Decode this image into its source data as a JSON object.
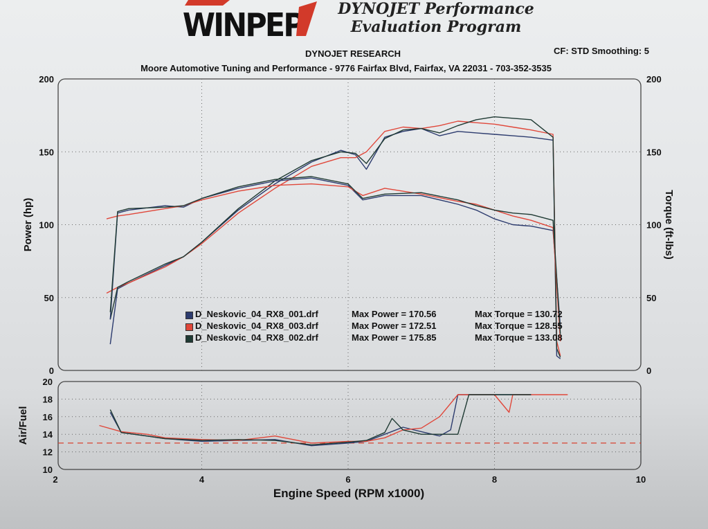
{
  "header": {
    "logo_text": "WINPEP",
    "subtitle_line1": "DYNOJET Performance",
    "subtitle_line2": "Evaluation Program",
    "research": "DYNOJET RESEARCH",
    "cf_smoothing": "CF: STD  Smoothing: 5",
    "shop": "Moore Automotive Tuning and Performance - 9776 Fairfax Blvd, Fairfax, VA 22031 - 703-352-3535"
  },
  "colors": {
    "run_001": "#2c3b6e",
    "run_003": "#e0473a",
    "run_002": "#1f3a33",
    "reference_line": "#d9432f"
  },
  "legend": [
    {
      "name": "D_Neskovic_04_RX8_001.drf",
      "power_label": "Max Power = 170.56",
      "torque_label": "Max Torque = 130.72",
      "color": "#2c3b6e"
    },
    {
      "name": "D_Neskovic_04_RX8_003.drf",
      "power_label": "Max Power = 172.51",
      "torque_label": "Max Torque = 128.55",
      "color": "#e0473a"
    },
    {
      "name": "D_Neskovic_04_RX8_002.drf",
      "power_label": "Max Power = 175.85",
      "torque_label": "Max Torque = 133.08",
      "color": "#1f3a33"
    }
  ],
  "chart_data": [
    {
      "type": "line",
      "xlabel": "Engine Speed (RPM x1000)",
      "ylabel": "Power (hp)",
      "y2label": "Torque (ft-lbs)",
      "xlim": [
        2,
        10
      ],
      "ylim": [
        0,
        200
      ],
      "y2lim": [
        0,
        200
      ],
      "xticks": [
        2,
        4,
        6,
        8,
        10
      ],
      "yticks": [
        0,
        50,
        100,
        150,
        200
      ],
      "y2ticks": [
        0,
        50,
        100,
        150,
        200
      ],
      "grid": true,
      "series": [
        {
          "name": "D_Neskovic_04_RX8_001.drf",
          "quantity": "power",
          "color": "#2c3b6e",
          "x": [
            2.75,
            2.85,
            3.0,
            3.5,
            3.75,
            4.0,
            4.5,
            5.0,
            5.5,
            5.9,
            6.1,
            6.25,
            6.5,
            6.75,
            7.0,
            7.25,
            7.5,
            7.75,
            8.0,
            8.25,
            8.5,
            8.8,
            8.85,
            8.9
          ],
          "y": [
            18,
            56,
            60,
            72,
            78,
            88,
            110,
            128,
            143,
            151,
            148,
            138,
            160,
            164,
            166,
            161,
            164,
            163,
            162,
            161,
            160,
            158,
            10,
            8
          ]
        },
        {
          "name": "D_Neskovic_04_RX8_003.drf",
          "quantity": "power",
          "color": "#e0473a",
          "x": [
            2.7,
            2.85,
            3.0,
            3.5,
            3.75,
            4.0,
            4.5,
            5.0,
            5.5,
            5.9,
            6.1,
            6.25,
            6.5,
            6.75,
            7.0,
            7.25,
            7.5,
            7.75,
            8.0,
            8.25,
            8.5,
            8.8,
            8.85,
            8.9
          ],
          "y": [
            53,
            57,
            60,
            71,
            78,
            87,
            108,
            125,
            140,
            146,
            146,
            150,
            164,
            167,
            166,
            168,
            171,
            170,
            169,
            167,
            165,
            162,
            20,
            10
          ]
        },
        {
          "name": "D_Neskovic_04_RX8_002.drf",
          "quantity": "power",
          "color": "#1f3a33",
          "x": [
            2.75,
            2.85,
            3.0,
            3.5,
            3.75,
            4.0,
            4.5,
            5.0,
            5.5,
            5.9,
            6.1,
            6.25,
            6.5,
            6.75,
            7.0,
            7.25,
            7.5,
            7.75,
            8.0,
            8.25,
            8.5,
            8.8,
            8.85,
            8.9
          ],
          "y": [
            35,
            57,
            61,
            73,
            78,
            88,
            111,
            130,
            144,
            150,
            149,
            142,
            159,
            165,
            166,
            163,
            168,
            172,
            174,
            173,
            172,
            160,
            15,
            9
          ]
        },
        {
          "name": "D_Neskovic_04_RX8_001.drf",
          "quantity": "torque",
          "color": "#2c3b6e",
          "x": [
            2.75,
            2.85,
            3.0,
            3.5,
            3.75,
            4.0,
            4.5,
            5.0,
            5.5,
            6.0,
            6.2,
            6.5,
            7.0,
            7.5,
            7.75,
            8.0,
            8.25,
            8.5,
            8.8,
            8.9
          ],
          "y": [
            35,
            108,
            110,
            113,
            112,
            118,
            125,
            130,
            132,
            127,
            117,
            120,
            120,
            114,
            110,
            104,
            100,
            99,
            96,
            30
          ]
        },
        {
          "name": "D_Neskovic_04_RX8_003.drf",
          "quantity": "torque",
          "color": "#e0473a",
          "x": [
            2.7,
            2.85,
            3.0,
            3.5,
            3.75,
            4.0,
            4.5,
            5.0,
            5.5,
            6.0,
            6.2,
            6.5,
            7.0,
            7.5,
            7.75,
            8.0,
            8.25,
            8.5,
            8.8,
            8.9
          ],
          "y": [
            104,
            106,
            107,
            111,
            113,
            117,
            123,
            127,
            128,
            126,
            120,
            125,
            121,
            116,
            114,
            110,
            106,
            103,
            98,
            20
          ]
        },
        {
          "name": "D_Neskovic_04_RX8_002.drf",
          "quantity": "torque",
          "color": "#1f3a33",
          "x": [
            2.75,
            2.85,
            3.0,
            3.5,
            3.75,
            4.0,
            4.5,
            5.0,
            5.5,
            6.0,
            6.2,
            6.5,
            7.0,
            7.5,
            7.75,
            8.0,
            8.25,
            8.5,
            8.8,
            8.9
          ],
          "y": [
            40,
            109,
            111,
            112,
            113,
            118,
            126,
            131,
            133,
            128,
            118,
            121,
            122,
            117,
            113,
            110,
            108,
            107,
            103,
            25
          ]
        }
      ]
    },
    {
      "type": "line",
      "ylabel": "Air/Fuel",
      "xlabel": "Engine Speed (RPM x1000)",
      "xlim": [
        2,
        10
      ],
      "ylim": [
        10,
        20
      ],
      "xticks": [
        2,
        4,
        6,
        8,
        10
      ],
      "yticks": [
        10,
        12,
        14,
        16,
        18,
        20
      ],
      "grid": true,
      "reference_line": 13.0,
      "series": [
        {
          "name": "D_Neskovic_04_RX8_001.drf",
          "color": "#2c3b6e",
          "x": [
            2.75,
            2.9,
            3.25,
            3.5,
            4.0,
            4.5,
            5.0,
            5.5,
            6.0,
            6.25,
            6.5,
            6.75,
            7.0,
            7.25,
            7.4,
            7.5,
            7.75,
            8.0,
            8.25,
            8.5
          ],
          "y": [
            16.5,
            14.2,
            13.8,
            13.5,
            13.2,
            13.3,
            13.4,
            12.7,
            13.0,
            13.2,
            14.0,
            14.8,
            14.3,
            13.8,
            14.5,
            18.5,
            18.5,
            18.5,
            18.5,
            18.5
          ]
        },
        {
          "name": "D_Neskovic_04_RX8_003.drf",
          "color": "#e0473a",
          "x": [
            2.6,
            2.9,
            3.25,
            3.5,
            4.0,
            4.5,
            5.0,
            5.5,
            6.0,
            6.25,
            6.5,
            6.75,
            7.0,
            7.25,
            7.5,
            7.75,
            8.0,
            8.2,
            8.25,
            8.5,
            8.8,
            9.0
          ],
          "y": [
            15.0,
            14.3,
            14.0,
            13.6,
            13.4,
            13.3,
            13.8,
            13.0,
            13.2,
            13.2,
            13.6,
            14.5,
            14.7,
            16.0,
            18.5,
            18.5,
            18.5,
            16.5,
            18.5,
            18.5,
            18.5,
            18.5
          ]
        },
        {
          "name": "D_Neskovic_04_RX8_002.drf",
          "color": "#1f3a33",
          "x": [
            2.75,
            2.9,
            3.25,
            3.5,
            4.0,
            4.5,
            5.0,
            5.5,
            6.0,
            6.25,
            6.5,
            6.6,
            6.75,
            7.0,
            7.25,
            7.5,
            7.65,
            7.75,
            8.0,
            8.25,
            8.5
          ],
          "y": [
            16.8,
            14.2,
            13.8,
            13.5,
            13.3,
            13.4,
            13.3,
            12.8,
            13.1,
            13.3,
            14.2,
            15.8,
            14.5,
            14.0,
            14.0,
            14.0,
            18.5,
            18.5,
            18.5,
            18.5,
            18.5
          ]
        }
      ]
    }
  ]
}
